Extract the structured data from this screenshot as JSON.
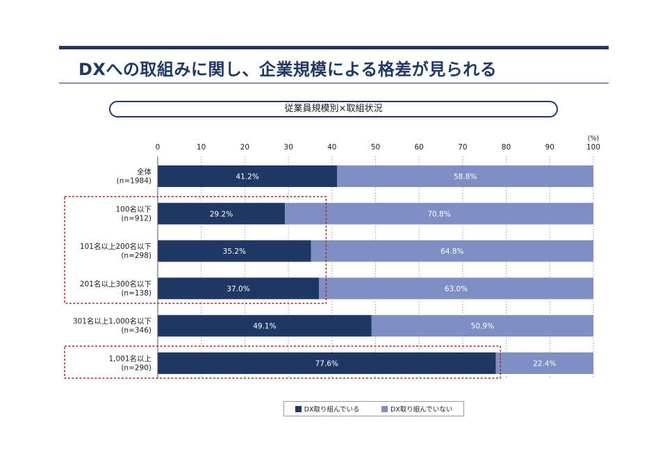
{
  "page": {
    "title": "DXへの取組みに関し、企業規模による格差が見られる",
    "subtitle": "従業員規模別×取組状況"
  },
  "colors": {
    "brand": "#1f3864",
    "series_doing": "#1f3864",
    "series_not_doing": "#7f8fc4",
    "highlight_box": "#9b2a2a"
  },
  "chart_data": {
    "type": "bar",
    "orientation": "horizontal",
    "stacked": true,
    "unit_label": "(%)",
    "xlim": [
      0,
      100
    ],
    "x_ticks": [
      "0",
      "10",
      "20",
      "30",
      "40",
      "50",
      "60",
      "70",
      "80",
      "90",
      "100"
    ],
    "grid": "vertical dotted",
    "legend_position": "bottom",
    "categories": [
      {
        "label": "全体",
        "n": "(n=1984)"
      },
      {
        "label": "100名以下",
        "n": "(n=912)"
      },
      {
        "label": "101名以上200名以下",
        "n": "(n=298)"
      },
      {
        "label": "201名以上300名以下",
        "n": "(n=138)"
      },
      {
        "label": "301名以上1,000名以下",
        "n": "(n=346)"
      },
      {
        "label": "1,001名以上",
        "n": "(n=290)"
      }
    ],
    "series": [
      {
        "name": "DX取り組んでいる",
        "values": [
          41.2,
          29.2,
          35.2,
          37.0,
          49.1,
          77.6
        ],
        "labels": [
          "41.2%",
          "29.2%",
          "35.2%",
          "37.0%",
          "49.1%",
          "77.6%"
        ]
      },
      {
        "name": "DX取り組んでいない",
        "values": [
          58.8,
          70.8,
          64.8,
          63.0,
          50.9,
          22.4
        ],
        "labels": [
          "58.8%",
          "70.8%",
          "64.8%",
          "63.0%",
          "50.9%",
          "22.4%"
        ]
      }
    ],
    "highlight_groups": [
      {
        "categories": [
          1,
          2,
          3
        ],
        "value_extent": 38.5
      },
      {
        "categories": [
          5
        ],
        "value_extent": 78.5
      }
    ]
  }
}
